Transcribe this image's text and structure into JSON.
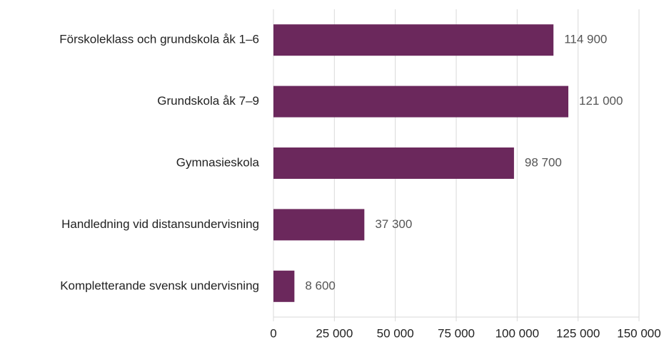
{
  "chart_data": {
    "type": "barh",
    "categories": [
      "Förskoleklass och grundskola åk 1–6",
      "Grundskola åk 7–9",
      "Gymnasieskola",
      "Handledning vid distansundervisning",
      "Kompletterande svensk undervisning"
    ],
    "values": [
      114900,
      121000,
      98700,
      37300,
      8600
    ],
    "value_labels": [
      "114 900",
      "121 000",
      "98 700",
      "37 300",
      "8 600"
    ],
    "color": "#6b285c",
    "xlim": [
      0,
      150000
    ],
    "xticks": [
      0,
      {
        "value": 25000,
        "label": "25 000"
      },
      {
        "value": 50000,
        "label": "50 000"
      },
      {
        "value": 75000,
        "label": "75 000"
      },
      {
        "value": 100000,
        "label": "100 000"
      },
      {
        "value": 125000,
        "label": "125 000"
      },
      {
        "value": 150000,
        "label": "150 000"
      }
    ],
    "grid": true
  }
}
